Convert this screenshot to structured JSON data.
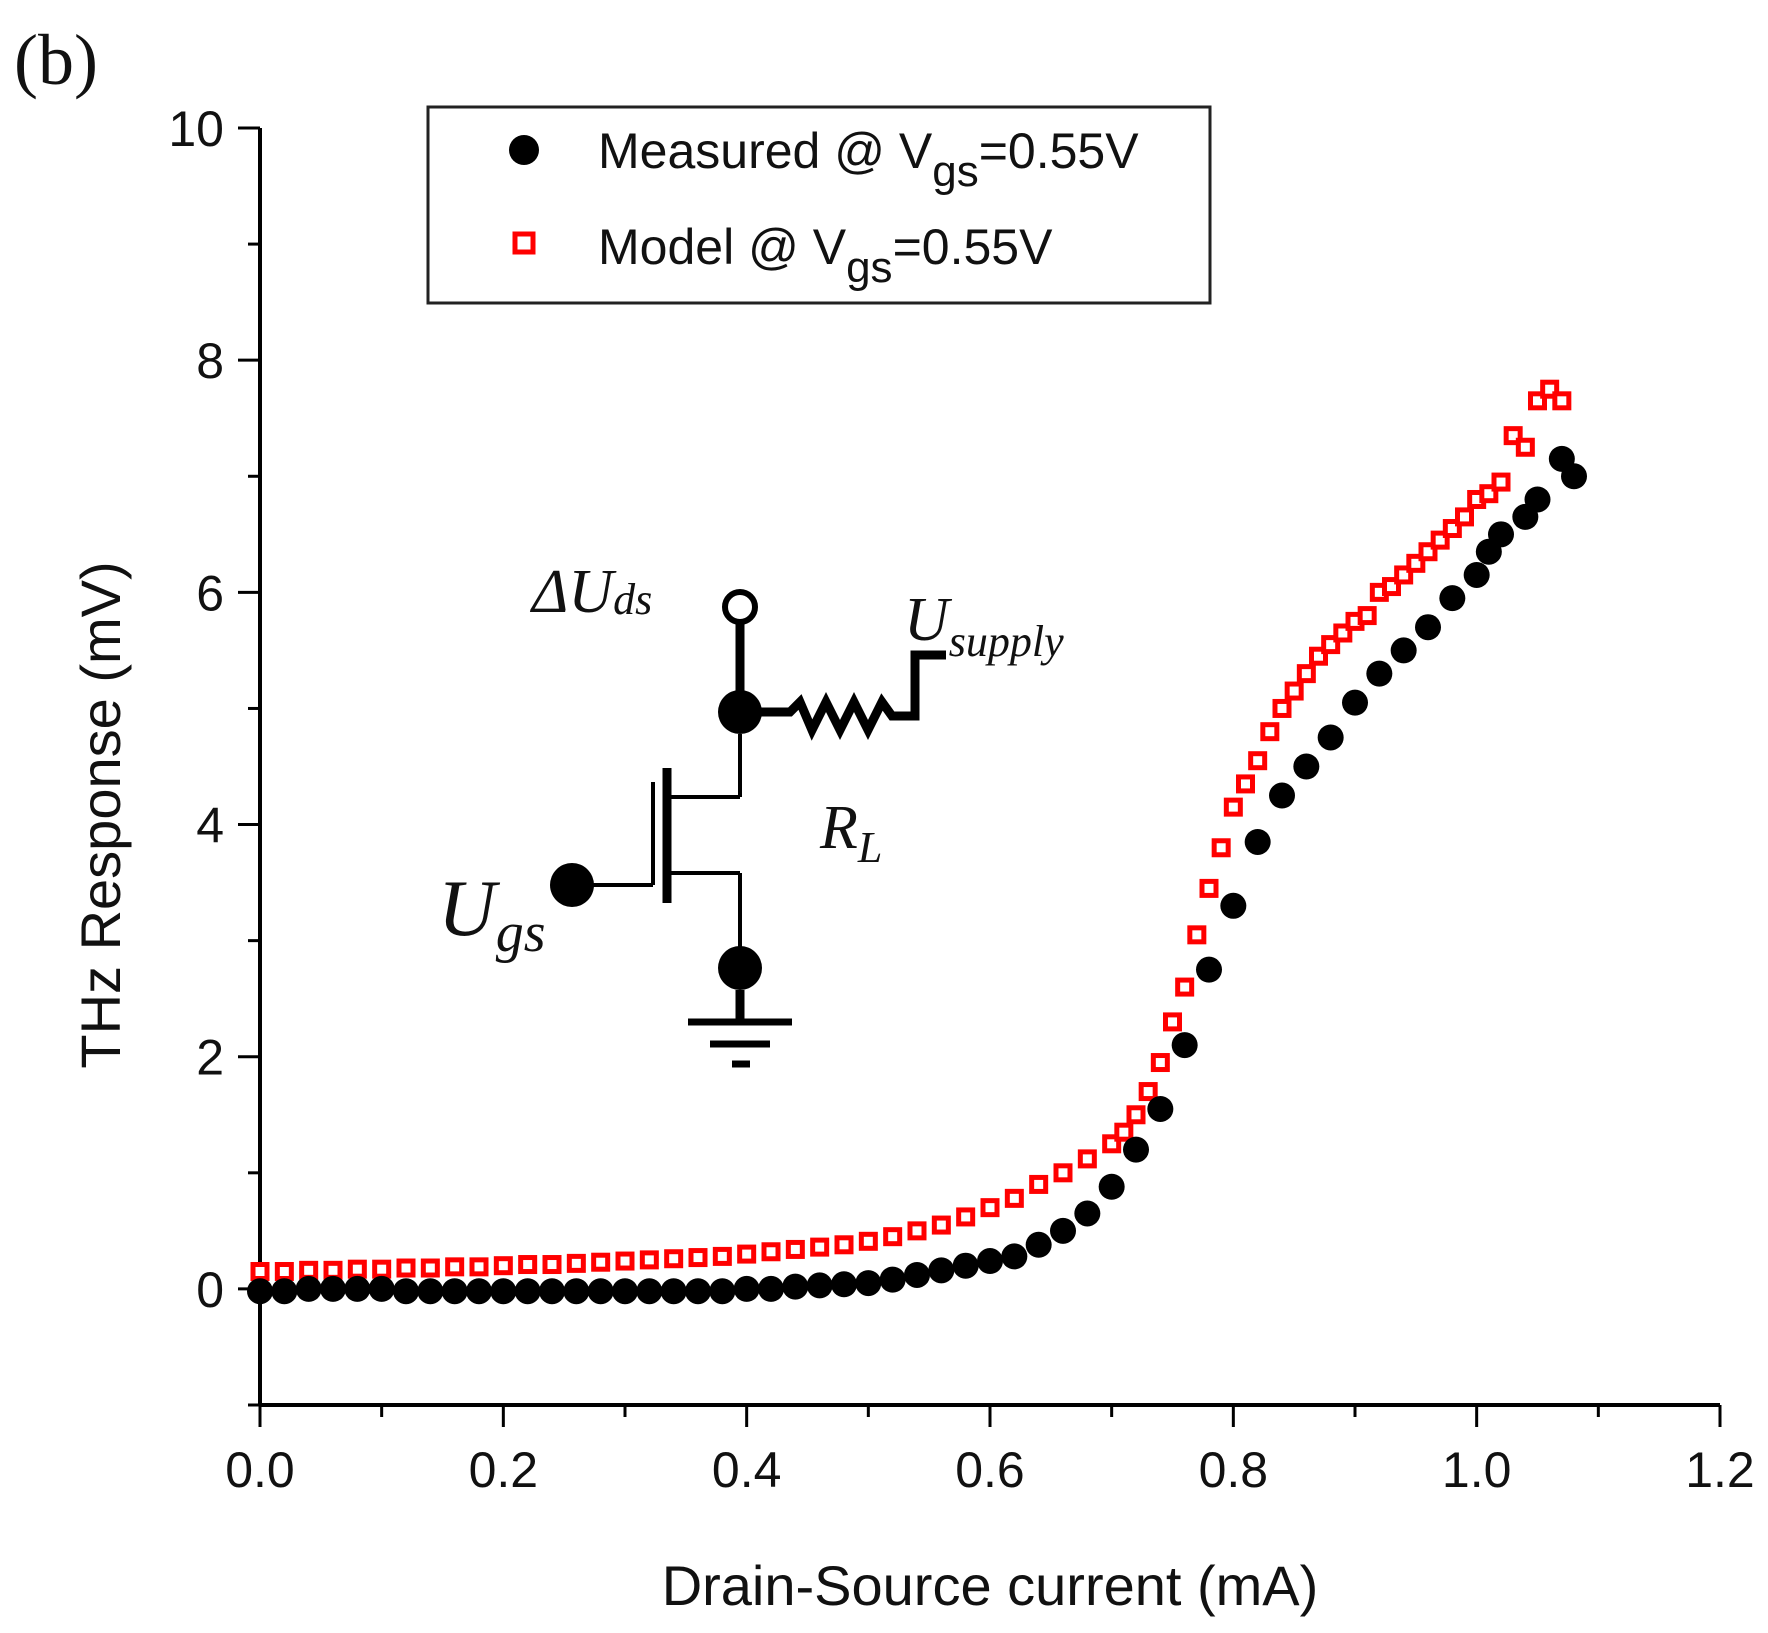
{
  "panel_label": "(b)",
  "colors": {
    "measured": "#000000",
    "model_stroke": "#ff0000",
    "model_fill": "#ffffff",
    "axis": "#000000"
  },
  "chart_data": {
    "type": "scatter",
    "title": "",
    "xlabel": "Drain-Source current (mA)",
    "ylabel": "THz Response (mV)",
    "xlim": [
      0.0,
      1.2
    ],
    "ylim": [
      -1,
      10
    ],
    "xticks": [
      "0.0",
      "0.2",
      "0.4",
      "0.6",
      "0.8",
      "1.0",
      "1.2"
    ],
    "yticks": [
      "0",
      "2",
      "4",
      "6",
      "8",
      "10"
    ],
    "grid": false,
    "legend_position": "top",
    "legend": [
      {
        "marker": "filled-circle",
        "text": "Measured @ V",
        "sub": "gs",
        "suffix": "=0.55V"
      },
      {
        "marker": "open-square",
        "text": "Model @ V",
        "sub": "gs",
        "suffix": "=0.55V"
      }
    ],
    "series": [
      {
        "name": "Measured @ Vgs=0.55V",
        "marker": "filled-circle",
        "x": [
          0.0,
          0.02,
          0.04,
          0.06,
          0.08,
          0.1,
          0.12,
          0.14,
          0.16,
          0.18,
          0.2,
          0.22,
          0.24,
          0.26,
          0.28,
          0.3,
          0.32,
          0.34,
          0.36,
          0.38,
          0.4,
          0.42,
          0.44,
          0.46,
          0.48,
          0.5,
          0.52,
          0.54,
          0.56,
          0.58,
          0.6,
          0.62,
          0.64,
          0.66,
          0.68,
          0.7,
          0.72,
          0.74,
          0.76,
          0.78,
          0.8,
          0.82,
          0.84,
          0.86,
          0.88,
          0.9,
          0.92,
          0.94,
          0.96,
          0.98,
          1.0,
          1.01,
          1.02,
          1.04,
          1.05,
          1.07,
          1.08
        ],
        "y": [
          -0.02,
          -0.02,
          0.0,
          0.0,
          0.0,
          0.0,
          -0.02,
          -0.02,
          -0.02,
          -0.02,
          -0.02,
          -0.02,
          -0.02,
          -0.02,
          -0.02,
          -0.02,
          -0.02,
          -0.02,
          -0.02,
          -0.02,
          0.0,
          0.0,
          0.02,
          0.03,
          0.04,
          0.05,
          0.08,
          0.12,
          0.16,
          0.2,
          0.24,
          0.28,
          0.38,
          0.5,
          0.65,
          0.88,
          1.2,
          1.55,
          2.1,
          2.75,
          3.3,
          3.85,
          4.25,
          4.5,
          4.75,
          5.05,
          5.3,
          5.5,
          5.7,
          5.95,
          6.15,
          6.35,
          6.5,
          6.65,
          6.8,
          7.15,
          7.0
        ]
      },
      {
        "name": "Model @ Vgs=0.55V",
        "marker": "open-square",
        "x": [
          0.0,
          0.02,
          0.04,
          0.06,
          0.08,
          0.1,
          0.12,
          0.14,
          0.16,
          0.18,
          0.2,
          0.22,
          0.24,
          0.26,
          0.28,
          0.3,
          0.32,
          0.34,
          0.36,
          0.38,
          0.4,
          0.42,
          0.44,
          0.46,
          0.48,
          0.5,
          0.52,
          0.54,
          0.56,
          0.58,
          0.6,
          0.62,
          0.64,
          0.66,
          0.68,
          0.7,
          0.71,
          0.72,
          0.73,
          0.74,
          0.75,
          0.76,
          0.77,
          0.78,
          0.79,
          0.8,
          0.81,
          0.82,
          0.83,
          0.84,
          0.85,
          0.86,
          0.87,
          0.88,
          0.89,
          0.9,
          0.91,
          0.92,
          0.93,
          0.94,
          0.95,
          0.96,
          0.97,
          0.98,
          0.99,
          1.0,
          1.01,
          1.02,
          1.03,
          1.04,
          1.05,
          1.06,
          1.07
        ],
        "y": [
          0.15,
          0.15,
          0.16,
          0.16,
          0.17,
          0.17,
          0.18,
          0.18,
          0.19,
          0.19,
          0.2,
          0.21,
          0.21,
          0.22,
          0.23,
          0.24,
          0.25,
          0.26,
          0.27,
          0.28,
          0.3,
          0.32,
          0.34,
          0.36,
          0.38,
          0.41,
          0.45,
          0.5,
          0.55,
          0.62,
          0.7,
          0.78,
          0.9,
          1.0,
          1.12,
          1.25,
          1.35,
          1.5,
          1.7,
          1.95,
          2.3,
          2.6,
          3.05,
          3.45,
          3.8,
          4.15,
          4.35,
          4.55,
          4.8,
          5.0,
          5.15,
          5.3,
          5.45,
          5.55,
          5.65,
          5.75,
          5.8,
          6.0,
          6.05,
          6.15,
          6.25,
          6.35,
          6.45,
          6.55,
          6.65,
          6.8,
          6.85,
          6.95,
          7.35,
          7.25,
          7.65,
          7.75,
          7.65
        ]
      }
    ]
  },
  "inset_circuit": {
    "labels": {
      "delta_u": "ΔU",
      "delta_u_sub": "ds",
      "supply": "U",
      "supply_sub": "supply",
      "rl": "R",
      "rl_sub": "L",
      "ugs": "U",
      "ugs_sub": "gs"
    }
  }
}
